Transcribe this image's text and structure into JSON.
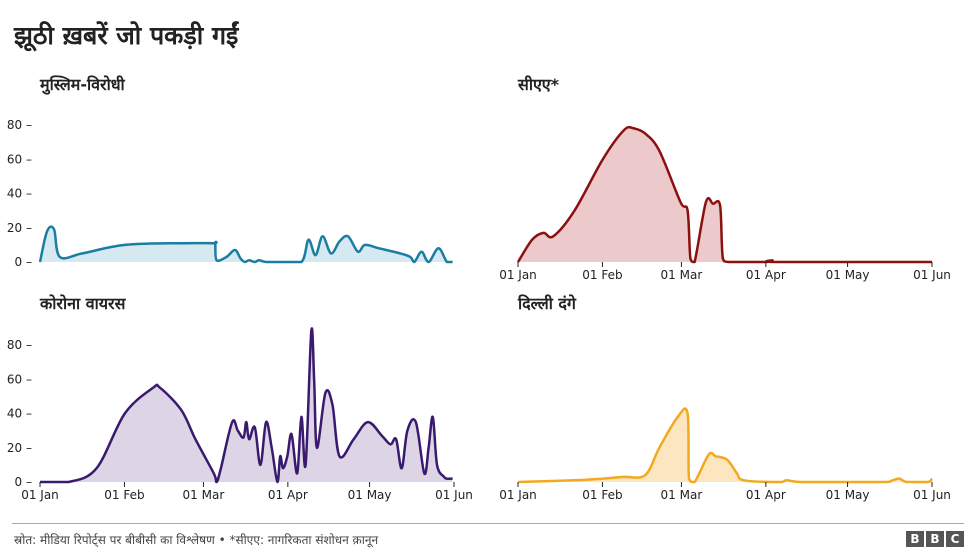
{
  "title": "झूठी ख़बरें जो पकड़ी गईं",
  "source": "स्रोत: मीडिया रिपोर्ट्स पर बीबीसी का विश्लेषण • *सीएए: नागरिकता संशोधन क़ानून",
  "logo": [
    "B",
    "B",
    "C"
  ],
  "chart_data": [
    {
      "type": "area",
      "title": "मुस्लिम-विरोधी",
      "color": "#1a7ea3",
      "fill": "#d6e8f0",
      "yticks": [
        0,
        20,
        40,
        60,
        80
      ],
      "ylim": [
        0,
        85
      ],
      "x": [
        0,
        5,
        10,
        14,
        30,
        60,
        100,
        123,
        124,
        125,
        132,
        138,
        142,
        145,
        148,
        152,
        155,
        160,
        170,
        185,
        190,
        195,
        200,
        206,
        212,
        218,
        225,
        230,
        240,
        255,
        262,
        265,
        270,
        275,
        282,
        288,
        292
      ],
      "y": [
        0,
        18,
        19,
        3,
        5,
        10,
        11,
        11,
        11,
        1,
        3,
        7,
        2,
        0,
        1,
        0,
        1,
        0,
        0,
        0,
        13,
        4,
        15,
        5,
        12,
        15,
        6,
        10,
        8,
        5,
        3,
        0,
        6,
        0,
        8,
        0,
        0
      ]
    },
    {
      "type": "area",
      "title": "सीएए*",
      "color": "#8b1010",
      "fill": "#ecc9cb",
      "yticks": [],
      "ylim": [
        0,
        85
      ],
      "x": [
        0,
        10,
        18,
        25,
        40,
        60,
        75,
        82,
        90,
        100,
        115,
        120,
        122,
        125,
        133,
        138,
        143,
        145,
        150,
        175,
        180,
        185,
        293
      ],
      "y": [
        0,
        13,
        17,
        15,
        30,
        60,
        77,
        78,
        75,
        65,
        35,
        30,
        2,
        0,
        35,
        34,
        33,
        2,
        0,
        0,
        1,
        0,
        0
      ],
      "xticks": [
        "01 Jan",
        "01 Feb",
        "01 Mar",
        "01 Apr",
        "01 May",
        "01 Jun"
      ]
    },
    {
      "type": "area",
      "title": "कोरोना वायरस",
      "color": "#3a1a6e",
      "fill": "#ddd5e6",
      "yticks": [
        0,
        20,
        40,
        60,
        80
      ],
      "ylim": [
        0,
        85
      ],
      "x": [
        0,
        20,
        40,
        60,
        80,
        85,
        100,
        110,
        123,
        125,
        128,
        136,
        140,
        144,
        146,
        148,
        152,
        156,
        160,
        164,
        168,
        170,
        172,
        175,
        178,
        182,
        185,
        188,
        192,
        194,
        196,
        202,
        207,
        212,
        222,
        232,
        242,
        248,
        252,
        256,
        260,
        266,
        272,
        275,
        278,
        281,
        286,
        288,
        292
      ],
      "y": [
        0,
        0,
        8,
        40,
        55,
        55,
        42,
        25,
        5,
        0,
        8,
        35,
        30,
        26,
        35,
        25,
        32,
        10,
        35,
        20,
        0,
        15,
        8,
        15,
        28,
        5,
        38,
        10,
        88,
        60,
        20,
        52,
        45,
        15,
        25,
        35,
        27,
        22,
        25,
        8,
        30,
        35,
        5,
        20,
        38,
        10,
        3,
        2,
        2
      ],
      "xticks": [
        "01 Jan",
        "01 Feb",
        "01 Mar",
        "01 Apr",
        "01 May",
        "01 Jun"
      ]
    },
    {
      "type": "area",
      "title": "दिल्ली दंगे",
      "color": "#f2a91f",
      "fill": "#fbe6c0",
      "yticks": [],
      "ylim": [
        0,
        85
      ],
      "x": [
        0,
        40,
        60,
        75,
        90,
        100,
        113,
        120,
        121,
        125,
        135,
        140,
        148,
        155,
        160,
        185,
        190,
        200,
        230,
        260,
        265,
        270,
        275,
        290,
        293
      ],
      "y": [
        0,
        1,
        2,
        3,
        4,
        20,
        38,
        40,
        2,
        0,
        16,
        15,
        13,
        5,
        1,
        0,
        1,
        0,
        0,
        0,
        1,
        2,
        0,
        0,
        2
      ],
      "xticks": [
        "01 Jan",
        "01 Feb",
        "01 Mar",
        "01 Apr",
        "01 May",
        "01 Jun"
      ]
    }
  ]
}
